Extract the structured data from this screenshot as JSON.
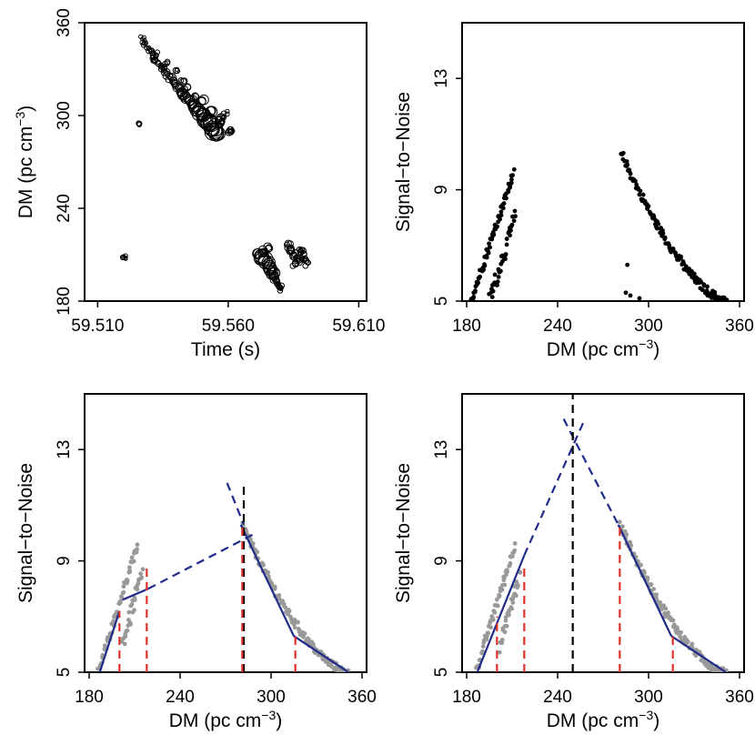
{
  "chart_data": [
    {
      "id": "p1",
      "type": "scatter",
      "marker": "open-circle",
      "xlabel": "Time (s)",
      "ylabel": "DM  (pc cm",
      "ylabel_sup": "−3",
      "ylabel_close": ")",
      "xlim": [
        59.505,
        59.613
      ],
      "ylim": [
        180,
        360
      ],
      "xticks": [
        59.51,
        59.56,
        59.61
      ],
      "xtick_labels": [
        "59.510",
        "59.560",
        "59.610"
      ],
      "yticks": [
        180,
        240,
        300,
        360
      ],
      "ytick_labels": [
        "180",
        "240",
        "300",
        "360"
      ],
      "series": [
        {
          "name": "dm-time-track",
          "points": [
            [
              59.527,
              350,
              2
            ],
            [
              59.5275,
              348,
              2.2
            ],
            [
              59.528,
              346,
              2.4
            ],
            [
              59.529,
              344,
              2.4
            ],
            [
              59.53,
              342,
              2.6
            ],
            [
              59.531,
              340,
              2.6
            ],
            [
              59.5315,
              338,
              2.8
            ],
            [
              59.532,
              336,
              2.8
            ],
            [
              59.533,
              334,
              3
            ],
            [
              59.534,
              332,
              3
            ],
            [
              59.535,
              330,
              3.2
            ],
            [
              59.536,
              328,
              3.2
            ],
            [
              59.537,
              326,
              3.4
            ],
            [
              59.538,
              324,
              3.6
            ],
            [
              59.539,
              322,
              3.6
            ],
            [
              59.54,
              320,
              3.8
            ],
            [
              59.541,
              318,
              4
            ],
            [
              59.542,
              316,
              4.2
            ],
            [
              59.543,
              314,
              4.4
            ],
            [
              59.544,
              312,
              4.6
            ],
            [
              59.545,
              310,
              5
            ],
            [
              59.546,
              308,
              5.4
            ],
            [
              59.547,
              306,
              5.8
            ],
            [
              59.548,
              304,
              6.2
            ],
            [
              59.549,
              302,
              6.6
            ],
            [
              59.55,
              300,
              7
            ],
            [
              59.551,
              298,
              7.4
            ],
            [
              59.552,
              296,
              7.8
            ],
            [
              59.553,
              294,
              8
            ],
            [
              59.554,
              292,
              8.2
            ],
            [
              59.555,
              290,
              8.4
            ],
            [
              59.556,
              288,
              8
            ],
            [
              59.5565,
              294,
              3
            ],
            [
              59.557,
              296,
              3
            ],
            [
              59.547,
              312,
              4
            ],
            [
              59.544,
              318,
              3
            ],
            [
              59.5425,
              322,
              3
            ],
            [
              59.5405,
              330,
              2.6
            ],
            [
              59.536,
              334,
              2.6
            ],
            [
              59.533,
              340,
              2.4
            ],
            [
              59.5505,
              310,
              5
            ],
            [
              59.5535,
              302,
              6
            ],
            [
              59.557,
              298,
              4
            ],
            [
              59.558,
              300,
              2.6
            ],
            [
              59.559,
              302,
              2.4
            ],
            [
              59.5605,
              291,
              3
            ],
            [
              59.561,
              289,
              3.2
            ],
            [
              59.526,
              295,
              2.4
            ],
            [
              59.52,
              208,
              2
            ],
            [
              59.5202,
              208,
              2.4
            ],
            [
              59.572,
              210,
              6
            ],
            [
              59.573,
              208,
              7
            ],
            [
              59.574,
              206,
              7.4
            ],
            [
              59.575,
              204,
              7.4
            ],
            [
              59.576,
              202,
              7
            ],
            [
              59.5765,
              200,
              6
            ],
            [
              59.577,
              198,
              5.2
            ],
            [
              59.5775,
              196,
              4.4
            ],
            [
              59.578,
              194,
              3.6
            ],
            [
              59.5785,
              192,
              3
            ],
            [
              59.579,
              190,
              2.6
            ],
            [
              59.5795,
              188,
              2.4
            ],
            [
              59.5735,
              212,
              5
            ],
            [
              59.5755,
              214,
              4
            ],
            [
              59.58,
              190,
              2.6
            ],
            [
              59.583,
              216,
              3
            ],
            [
              59.5835,
              214,
              3.4
            ],
            [
              59.584,
              212,
              3.6
            ],
            [
              59.585,
              210,
              3.6
            ],
            [
              59.586,
              208,
              3.4
            ],
            [
              59.587,
              206,
              3.2
            ],
            [
              59.5875,
              214,
              3
            ],
            [
              59.588,
              212,
              3
            ],
            [
              59.5885,
              210,
              2.8
            ],
            [
              59.589,
              208,
              2.8
            ],
            [
              59.5895,
              206,
              2.6
            ],
            [
              59.59,
              204,
              2.4
            ],
            [
              59.5855,
              204,
              3
            ]
          ]
        }
      ]
    },
    {
      "id": "p2",
      "type": "scatter",
      "marker": "filled-dot",
      "xlabel": "DM  (pc cm",
      "xlabel_sup": "−3",
      "xlabel_close": ")",
      "ylabel": "Signal−to−Noise",
      "xlim": [
        177,
        363
      ],
      "ylim": [
        5,
        15
      ],
      "xticks": [
        180,
        240,
        300,
        360
      ],
      "xtick_labels": [
        "180",
        "240",
        "300",
        "360"
      ],
      "yticks": [
        5,
        9,
        13
      ],
      "ytick_labels": [
        "5",
        "9",
        "13"
      ],
      "series": [
        {
          "name": "left-rise",
          "x_from": 183,
          "x_to": 211,
          "y_from": 5.0,
          "y_to": 9.6,
          "n": 70,
          "jitter": 0.15
        },
        {
          "name": "left-second-arm",
          "x_from": 195,
          "x_to": 212,
          "y_from": 5.0,
          "y_to": 8.0,
          "n": 40,
          "jitter": 0.3
        },
        {
          "name": "right-fall",
          "x_from": 282,
          "x_to": 352,
          "y_from": 10.3,
          "y_to": 5.0,
          "n": 140,
          "jitter": 0.15,
          "curve": 1.6
        },
        {
          "name": "isolated",
          "points": [
            [
              286,
              6.3
            ],
            [
              285,
              5.3
            ],
            [
              288,
              5.2
            ],
            [
              294,
              5.1
            ]
          ]
        }
      ]
    },
    {
      "id": "p3",
      "type": "scatter",
      "marker": "filled-dot-grey",
      "xlabel": "DM  (pc cm",
      "xlabel_sup": "−3",
      "xlabel_close": ")",
      "ylabel": "Signal−to−Noise",
      "xlim": [
        177,
        363
      ],
      "ylim": [
        5,
        15
      ],
      "xticks": [
        180,
        240,
        300,
        360
      ],
      "xtick_labels": [
        "180",
        "240",
        "300",
        "360"
      ],
      "yticks": [
        5,
        9,
        13
      ],
      "ytick_labels": [
        "5",
        "9",
        "13"
      ],
      "series": [
        {
          "name": "left-rise",
          "x_from": 186,
          "x_to": 212,
          "y_from": 5.0,
          "y_to": 9.6,
          "n": 60,
          "jitter": 0.15
        },
        {
          "name": "left-second-arm",
          "x_from": 202,
          "x_to": 215,
          "y_from": 6.0,
          "y_to": 8.5,
          "n": 30,
          "jitter": 0.3
        },
        {
          "name": "right-fall",
          "x_from": 281,
          "x_to": 351,
          "y_from": 10.3,
          "y_to": 5.0,
          "n": 140,
          "jitter": 0.15,
          "curve": 1.6
        }
      ],
      "lines": [
        {
          "name": "fit-left-solid",
          "style": "solid",
          "color": "#1f2a8a",
          "pts": [
            [
              187,
              5.0
            ],
            [
              200,
              7.2
            ]
          ]
        },
        {
          "name": "fit-bridge-solid",
          "style": "solid",
          "color": "#1f2a8a",
          "pts": [
            [
              202,
              7.6
            ],
            [
              219,
              8.0
            ]
          ]
        },
        {
          "name": "fit-bridge-dash",
          "style": "dashed",
          "color": "#1f2a8a",
          "pts": [
            [
              219,
              8.0
            ],
            [
              290,
              10.0
            ]
          ]
        },
        {
          "name": "fit-right-solid",
          "style": "solid",
          "color": "#1f2a8a",
          "pts": [
            [
              280,
              10.3
            ],
            [
              315,
              6.3
            ]
          ]
        },
        {
          "name": "fit-right-tail",
          "style": "solid",
          "color": "#1f2a8a",
          "pts": [
            [
              315,
              6.3
            ],
            [
              351,
              5.0
            ]
          ]
        },
        {
          "name": "fit-right-dash-up",
          "style": "dashed",
          "color": "#1f2a8a",
          "pts": [
            [
              271,
              11.8
            ],
            [
              282,
              10.3
            ]
          ]
        },
        {
          "name": "peak-line",
          "style": "dashed",
          "color": "#000000",
          "pts": [
            [
              282,
              5.0
            ],
            [
              282,
              11.8
            ]
          ]
        },
        {
          "name": "cut-200",
          "style": "dashed",
          "color": "#e0302a",
          "pts": [
            [
              200,
              5.0
            ],
            [
              200,
              7.2
            ]
          ]
        },
        {
          "name": "cut-218",
          "style": "dashed",
          "color": "#e0302a",
          "pts": [
            [
              218,
              5.0
            ],
            [
              218,
              8.8
            ]
          ]
        },
        {
          "name": "cut-281",
          "style": "dashed",
          "color": "#e0302a",
          "pts": [
            [
              281,
              5.0
            ],
            [
              281,
              10.3
            ]
          ]
        },
        {
          "name": "cut-316",
          "style": "dashed",
          "color": "#e0302a",
          "pts": [
            [
              316,
              5.0
            ],
            [
              316,
              6.3
            ]
          ]
        }
      ]
    },
    {
      "id": "p4",
      "type": "scatter",
      "marker": "filled-dot-grey",
      "xlabel": "DM  (pc cm",
      "xlabel_sup": "−3",
      "xlabel_close": ")",
      "ylabel": "Signal−to−Noise",
      "xlim": [
        177,
        363
      ],
      "ylim": [
        5,
        15
      ],
      "xticks": [
        180,
        240,
        300,
        360
      ],
      "xtick_labels": [
        "180",
        "240",
        "300",
        "360"
      ],
      "yticks": [
        5,
        9,
        13
      ],
      "ytick_labels": [
        "5",
        "9",
        "13"
      ],
      "series": [
        {
          "name": "left-rise",
          "x_from": 186,
          "x_to": 212,
          "y_from": 5.0,
          "y_to": 9.6,
          "n": 60,
          "jitter": 0.15
        },
        {
          "name": "left-second-arm",
          "x_from": 202,
          "x_to": 215,
          "y_from": 6.0,
          "y_to": 8.5,
          "n": 30,
          "jitter": 0.3
        },
        {
          "name": "right-fall",
          "x_from": 281,
          "x_to": 351,
          "y_from": 10.3,
          "y_to": 5.0,
          "n": 140,
          "jitter": 0.15,
          "curve": 1.6
        }
      ],
      "lines": [
        {
          "name": "fit-left-solid",
          "style": "solid",
          "color": "#1f2a8a",
          "pts": [
            [
              187,
              5.0
            ],
            [
              218,
              9.2
            ]
          ]
        },
        {
          "name": "fit-left-dash",
          "style": "dashed",
          "color": "#1f2a8a",
          "pts": [
            [
              218,
              9.2
            ],
            [
              258,
              14.1
            ]
          ]
        },
        {
          "name": "fit-right-solid",
          "style": "solid",
          "color": "#1f2a8a",
          "pts": [
            [
              280,
              10.3
            ],
            [
              315,
              6.3
            ]
          ]
        },
        {
          "name": "fit-right-tail",
          "style": "solid",
          "color": "#1f2a8a",
          "pts": [
            [
              315,
              6.3
            ],
            [
              351,
              5.0
            ]
          ]
        },
        {
          "name": "fit-right-dash",
          "style": "dashed",
          "color": "#1f2a8a",
          "pts": [
            [
              244,
              14.1
            ],
            [
              280,
              10.3
            ]
          ]
        },
        {
          "name": "peak-line",
          "style": "dashed",
          "color": "#000000",
          "pts": [
            [
              250,
              5.0
            ],
            [
              250,
              15.0
            ]
          ]
        },
        {
          "name": "cut-200",
          "style": "dashed",
          "color": "#e0302a",
          "pts": [
            [
              200,
              5.0
            ],
            [
              200,
              7.0
            ]
          ]
        },
        {
          "name": "cut-218",
          "style": "dashed",
          "color": "#e0302a",
          "pts": [
            [
              218,
              5.0
            ],
            [
              218,
              8.8
            ]
          ]
        },
        {
          "name": "cut-281",
          "style": "dashed",
          "color": "#e0302a",
          "pts": [
            [
              281,
              5.0
            ],
            [
              281,
              10.3
            ]
          ]
        },
        {
          "name": "cut-316",
          "style": "dashed",
          "color": "#e0302a",
          "pts": [
            [
              316,
              5.0
            ],
            [
              316,
              6.3
            ]
          ]
        }
      ]
    }
  ]
}
